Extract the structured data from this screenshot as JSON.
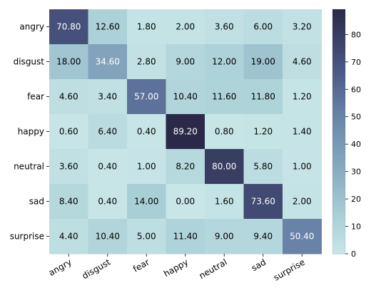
{
  "chart_data": {
    "type": "heatmap",
    "title": "",
    "xlabel": "",
    "ylabel": "",
    "row_labels": [
      "angry",
      "disgust",
      "fear",
      "happy",
      "neutral",
      "sad",
      "surprise"
    ],
    "col_labels": [
      "angry",
      "disgust",
      "fear",
      "happy",
      "neutral",
      "sad",
      "surprise"
    ],
    "values": [
      [
        70.8,
        12.6,
        1.8,
        2.0,
        3.6,
        6.0,
        3.2
      ],
      [
        18.0,
        34.6,
        2.8,
        9.0,
        12.0,
        19.0,
        4.6
      ],
      [
        4.6,
        3.4,
        57.0,
        10.4,
        11.6,
        11.8,
        1.2
      ],
      [
        0.6,
        6.4,
        0.4,
        89.2,
        0.8,
        1.2,
        1.4
      ],
      [
        3.6,
        0.4,
        1.0,
        8.2,
        80.0,
        5.8,
        1.0
      ],
      [
        8.4,
        0.4,
        14.0,
        0.0,
        1.6,
        73.6,
        2.0
      ],
      [
        4.4,
        10.4,
        5.0,
        11.4,
        9.0,
        9.4,
        50.4
      ]
    ],
    "value_format": "2 decimals",
    "colorbar": {
      "min": 0,
      "max": 89.2,
      "ticks": [
        0,
        10,
        20,
        30,
        40,
        50,
        60,
        70,
        80
      ],
      "color_low": "#c8e6e8",
      "color_high": "#2a2a48"
    },
    "x_tick_rotation_deg": 30,
    "text_color_dark": "#000000",
    "text_color_light": "#ffffff"
  }
}
